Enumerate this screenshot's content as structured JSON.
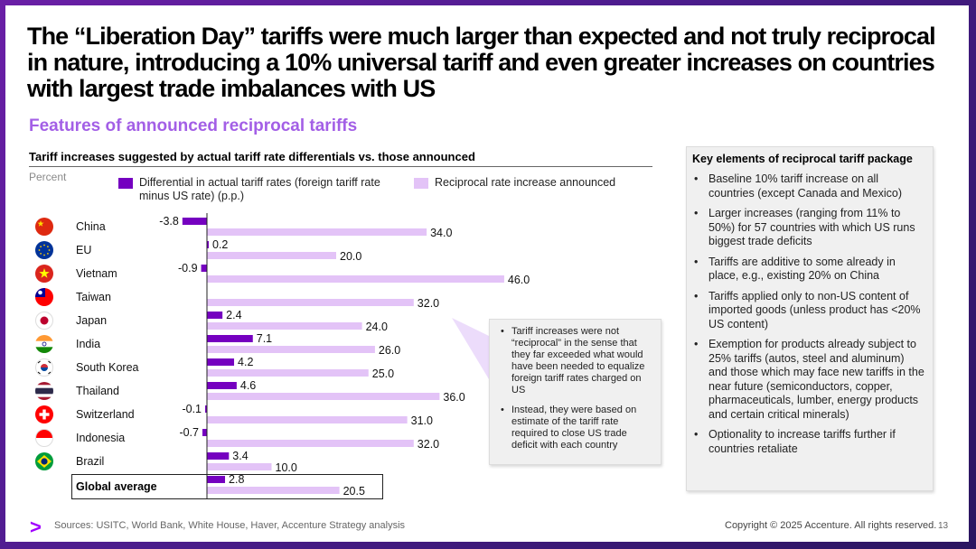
{
  "title": "The “Liberation Day” tariffs were much larger than expected and not truly reciprocal in nature, introducing a 10% universal tariff and even greater increases on countries with largest trade imbalances with US",
  "subtitle": "Features of announced reciprocal tariffs",
  "colors": {
    "differential": "#7500c0",
    "reciprocal": "#e3c3f7",
    "accent": "#a100ff",
    "subtitle": "#a35fe6"
  },
  "chart_data": {
    "type": "bar",
    "orientation": "horizontal",
    "title": "Tariff increases suggested by actual tariff rate differentials vs. those announced",
    "ylabel": "Percent",
    "categories": [
      "China",
      "EU",
      "Vietnam",
      "Taiwan",
      "Japan",
      "India",
      "South Korea",
      "Thailand",
      "Switzerland",
      "Indonesia",
      "Brazil",
      "Global average"
    ],
    "series": [
      {
        "name": "Differential in actual tariff rates (foreign tariff rate minus US rate) (p.p.)",
        "values": [
          -3.8,
          0.2,
          -0.9,
          null,
          2.4,
          7.1,
          4.2,
          4.6,
          -0.1,
          -0.7,
          3.4,
          2.8
        ],
        "labels": [
          "-3.8",
          "0.2",
          "-0.9",
          "",
          "2.4",
          "7.1",
          "4.2",
          "4.6",
          "-0.1",
          "-0.7",
          "3.4",
          "2.8"
        ]
      },
      {
        "name": "Reciprocal rate increase announced",
        "values": [
          34.0,
          20.0,
          46.0,
          32.0,
          24.0,
          26.0,
          25.0,
          36.0,
          31.0,
          32.0,
          10.0,
          20.5
        ],
        "labels": [
          "34.0",
          "20.0",
          "46.0",
          "32.0",
          "24.0",
          "26.0",
          "25.0",
          "36.0",
          "31.0",
          "32.0",
          "10.0",
          "20.5"
        ]
      }
    ],
    "xlim": [
      -5,
      50
    ],
    "highlight_row": "Global average"
  },
  "flags": [
    "china-flag",
    "eu-flag",
    "vietnam-flag",
    "taiwan-flag",
    "japan-flag",
    "india-flag",
    "south-korea-flag",
    "thailand-flag",
    "switzerland-flag",
    "indonesia-flag",
    "brazil-flag"
  ],
  "callout": {
    "items": [
      "Tariff increases were not “reciprocal” in the sense that they far exceeded what would have been needed to equalize foreign tariff rates charged on US",
      "Instead, they were based on estimate of the tariff rate required to close US trade deficit with each country"
    ]
  },
  "key_elements": {
    "title": "Key elements of reciprocal tariff package",
    "items": [
      "Baseline 10% tariff increase on all countries (except Canada and Mexico)",
      "Larger increases (ranging from 11% to 50%) for 57 countries with which US runs biggest trade deficits",
      "Tariffs are additive to some already in place, e.g., existing 20% on China",
      "Tariffs applied only to non-US content of imported goods (unless product has <20% US content)",
      "Exemption for products already subject to 25% tariffs (autos, steel and aluminum) and those  which may face new tariffs in the near future (semiconductors, copper, pharmaceuticals, lumber, energy products and certain critical minerals)",
      "Optionality to increase tariffs further if countries retaliate"
    ]
  },
  "footer": {
    "logo": ">",
    "sources": "Sources: USITC, World Bank, White House, Haver, Accenture Strategy analysis",
    "copyright": "Copyright © 2025 Accenture. All rights reserved.",
    "page": "13"
  }
}
